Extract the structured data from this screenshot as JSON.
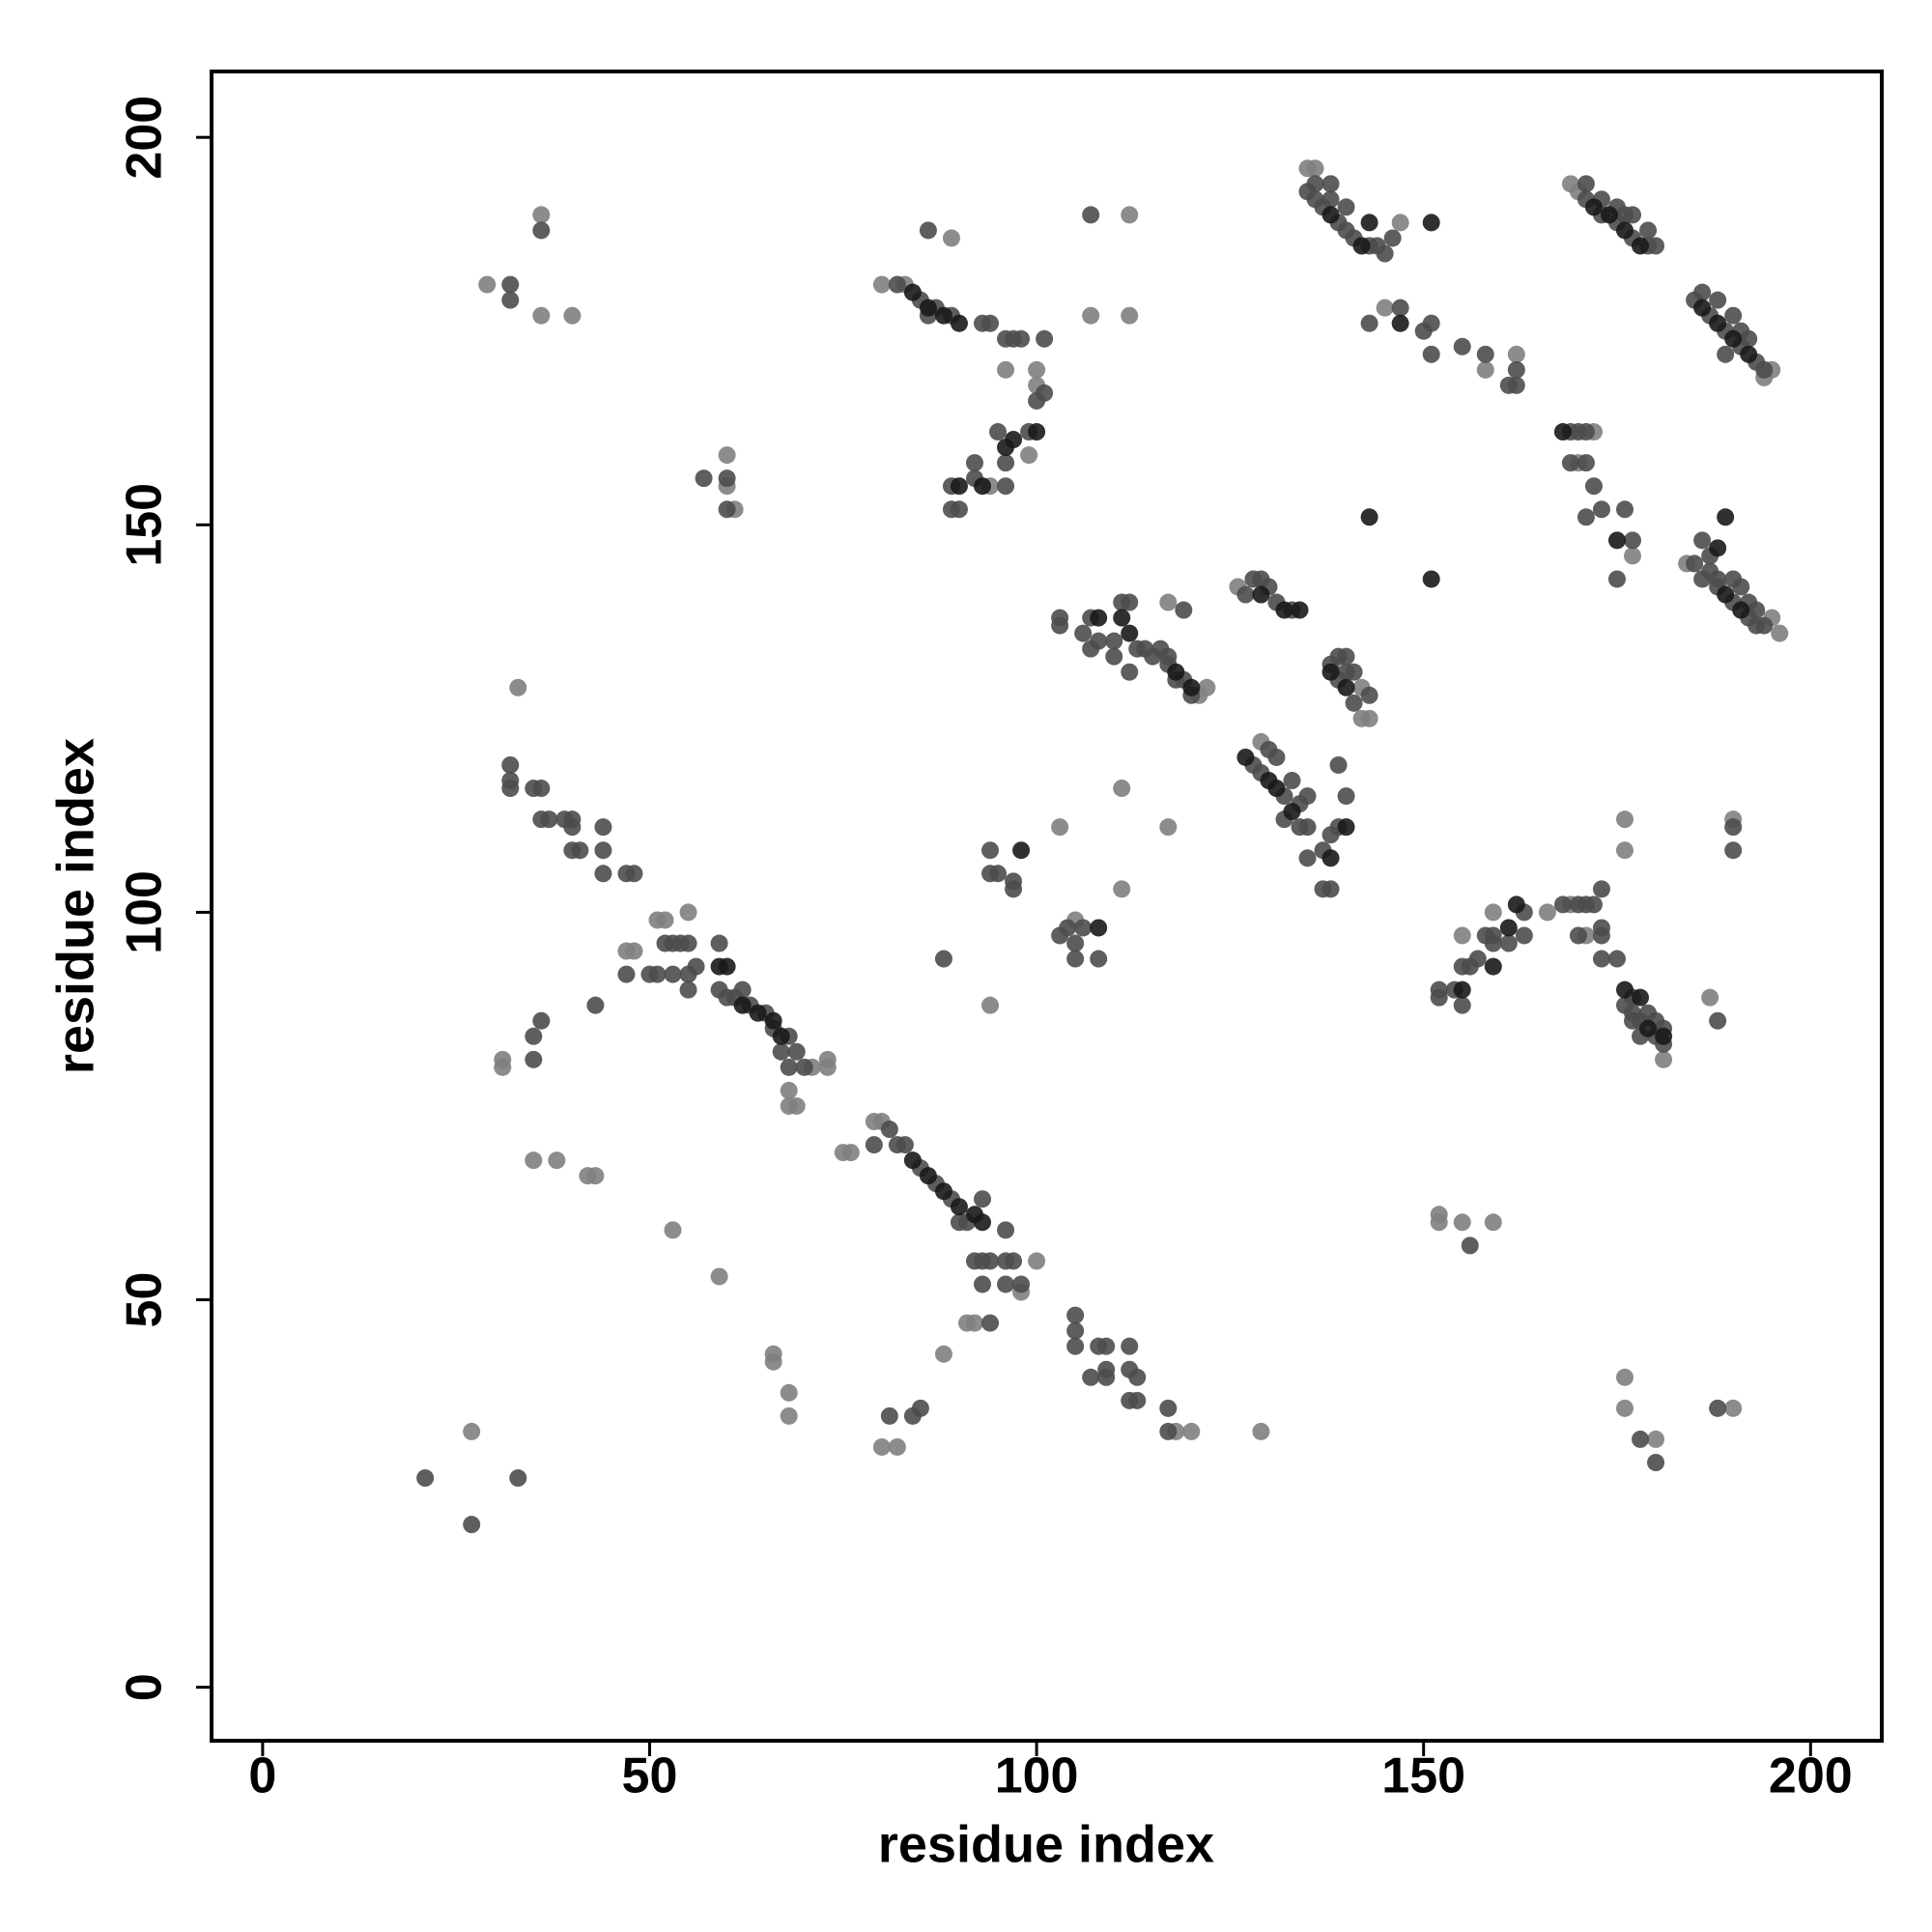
{
  "chart_data": {
    "type": "scatter",
    "xlabel": "residue index",
    "ylabel": "residue index",
    "xlim": [
      -6.6,
      209.2
    ],
    "ylim": [
      -6.9,
      208.5
    ],
    "xticks": [
      0,
      50,
      100,
      150,
      200
    ],
    "yticks": [
      0,
      50,
      100,
      150,
      200
    ],
    "series": [
      {
        "color": "#7f7f7f",
        "x": [
          27,
          31,
          31,
          35,
          38,
          42,
          43,
          33,
          36,
          29,
          36,
          40,
          53,
          59,
          60,
          60,
          61,
          66,
          66,
          68,
          68,
          75,
          76,
          79,
          80,
          80,
          82,
          88,
          89,
          94,
          96,
          100,
          100,
          99,
          112,
          107,
          112,
          103,
          111,
          117,
          111,
          105,
          129,
          118,
          120,
          145,
          147,
          158,
          162,
          152,
          152,
          155,
          159,
          166,
          169,
          171,
          170,
          172,
          177,
          176,
          176,
          190,
          187,
          176,
          176,
          180,
          190,
          196,
          195,
          194,
          195,
          169,
          170,
          135,
          136,
          184,
          122,
          121,
          68,
          68,
          69,
          71,
          73,
          73,
          47,
          48,
          51,
          52,
          55,
          91,
          92,
          98,
          100,
          94,
          83,
          80,
          142,
          143,
          142,
          155,
          159,
          181,
          126,
          129,
          117
        ],
        "y": [
          33,
          81,
          80,
          68,
          68,
          66,
          66,
          129,
          190,
          181,
          177,
          177,
          59,
          53,
          159,
          155,
          152,
          43,
          42,
          38,
          35,
          69,
          69,
          73,
          73,
          31,
          31,
          43,
          187,
          155,
          170,
          170,
          168,
          159,
          190,
          177,
          177,
          111,
          116,
          111,
          103,
          99,
          33,
          33,
          33,
          178,
          189,
          170,
          172,
          61,
          60,
          60,
          60,
          100,
          101,
          97,
          158,
          162,
          146,
          112,
          108,
          112,
          89,
          40,
          36,
          32,
          36,
          136,
          138,
          169,
          170,
          194,
          193,
          196,
          196,
          145,
          129,
          128,
          77,
          75,
          75,
          80,
          80,
          81,
          95,
          95,
          99,
          99,
          100,
          47,
          47,
          51,
          55,
          88,
          181,
          181,
          125,
          125,
          129,
          97,
          100,
          81,
          142,
          122,
          140
        ]
      },
      {
        "color": "#4d4d4d",
        "x": [
          21,
          27,
          33,
          35,
          35,
          36,
          43,
          32,
          32,
          32,
          35,
          36,
          36,
          37,
          39,
          40,
          40,
          40,
          41,
          44,
          44,
          44,
          47,
          48,
          36,
          32,
          32,
          47,
          50,
          51,
          52,
          53,
          54,
          53,
          55,
          55,
          55,
          56,
          59,
          59,
          60,
          61,
          62,
          63,
          65,
          66,
          67,
          68,
          68,
          69,
          70,
          57,
          60,
          60,
          79,
          81,
          82,
          83,
          85,
          87,
          89,
          90,
          91,
          93,
          92,
          93,
          94,
          93,
          94,
          96,
          96,
          96,
          97,
          98,
          81,
          84,
          85,
          88,
          82,
          85,
          86,
          87,
          89,
          86,
          93,
          94,
          96,
          97,
          98,
          101,
          101,
          100,
          99,
          96,
          96,
          95,
          92,
          92,
          89,
          89,
          90,
          107,
          94,
          94,
          95,
          97,
          97,
          103,
          104,
          106,
          105,
          105,
          108,
          105,
          105,
          105,
          108,
          109,
          107,
          109,
          109,
          112,
          112,
          113,
          112,
          113,
          117,
          117,
          103,
          103,
          107,
          106,
          107,
          108,
          110,
          110,
          111,
          112,
          112,
          113,
          114,
          115,
          116,
          117,
          117,
          118,
          119,
          120,
          119,
          127,
          128,
          129,
          130,
          131,
          133,
          128,
          129,
          130,
          131,
          132,
          132,
          133,
          134,
          134,
          135,
          135,
          135,
          137,
          137,
          138,
          138,
          139,
          140,
          139,
          138,
          139,
          139,
          140,
          141,
          141,
          143,
          140,
          135,
          136,
          137,
          139,
          140,
          141,
          143,
          144,
          145,
          146,
          136,
          138,
          138,
          140,
          143,
          147,
          150,
          151,
          151,
          155,
          158,
          161,
          162,
          162,
          152,
          152,
          154,
          155,
          155,
          156,
          157,
          158,
          159,
          159,
          161,
          163,
          163,
          168,
          170,
          171,
          172,
          170,
          173,
          173,
          173,
          173,
          175,
          156,
          169,
          170,
          171,
          169,
          171,
          171,
          172,
          173,
          175,
          176,
          177,
          171,
          171,
          173,
          175,
          176,
          177,
          179,
          179,
          180,
          173,
          175,
          177,
          185,
          186,
          187,
          188,
          189,
          189,
          190,
          191,
          191,
          192,
          193,
          194,
          185,
          186,
          186,
          187,
          187,
          188,
          188,
          190,
          190,
          191,
          192,
          192,
          193,
          193,
          194,
          190,
          190,
          188,
          176,
          177,
          177,
          178,
          179,
          180,
          180,
          181,
          181,
          177,
          178,
          178,
          180,
          188
        ],
        "y": [
          27,
          21,
          27,
          84,
          81,
          86,
          88,
          119,
          117,
          116,
          116,
          116,
          112,
          112,
          112,
          112,
          111,
          108,
          108,
          111,
          108,
          105,
          105,
          105,
          188,
          181,
          179,
          92,
          92,
          92,
          96,
          96,
          96,
          92,
          92,
          96,
          90,
          93,
          96,
          90,
          89,
          89,
          90,
          88,
          87,
          85,
          82,
          84,
          80,
          82,
          80,
          156,
          156,
          152,
          70,
          72,
          70,
          70,
          67,
          65,
          63,
          60,
          60,
          63,
          55,
          55,
          55,
          52,
          47,
          59,
          55,
          52,
          55,
          52,
          35,
          35,
          36,
          94,
          181,
          179,
          177,
          178,
          177,
          188,
          176,
          176,
          174,
          174,
          174,
          174,
          167,
          166,
          162,
          158,
          155,
          162,
          158,
          156,
          155,
          152,
          152,
          190,
          108,
          105,
          105,
          104,
          103,
          97,
          98,
          98,
          96,
          94,
          94,
          48,
          46,
          44,
          44,
          44,
          40,
          40,
          41,
          44,
          41,
          40,
          37,
          37,
          36,
          33,
          138,
          137,
          138,
          136,
          134,
          135,
          133,
          135,
          140,
          140,
          131,
          134,
          134,
          133,
          134,
          133,
          132,
          130,
          130,
          128,
          139,
          141,
          143,
          143,
          142,
          140,
          139,
          119,
          118,
          121,
          120,
          115,
          112,
          117,
          114,
          111,
          115,
          111,
          107,
          108,
          103,
          103,
          110,
          111,
          115,
          119,
          132,
          133,
          130,
          131,
          131,
          127,
          128,
          133,
          193,
          192,
          191,
          189,
          188,
          187,
          186,
          186,
          185,
          187,
          194,
          192,
          194,
          191,
          176,
          178,
          175,
          176,
          172,
          173,
          172,
          168,
          168,
          170,
          90,
          89,
          90,
          88,
          93,
          93,
          94,
          97,
          97,
          96,
          96,
          100,
          97,
          101,
          101,
          101,
          101,
          97,
          103,
          98,
          97,
          94,
          94,
          57,
          162,
          162,
          162,
          158,
          158,
          151,
          155,
          152,
          143,
          152,
          148,
          194,
          192,
          192,
          189,
          190,
          187,
          186,
          188,
          186,
          190,
          191,
          190,
          179,
          180,
          177,
          179,
          175,
          172,
          177,
          175,
          173,
          174,
          171,
          170,
          145,
          143,
          148,
          146,
          144,
          143,
          142,
          143,
          140,
          142,
          140,
          138,
          139,
          137,
          137,
          111,
          108,
          86,
          88,
          89,
          87,
          86,
          87,
          86,
          84,
          85,
          83,
          86,
          84,
          32,
          29,
          36
        ]
      },
      {
        "color": "#1a1a1a",
        "x": [
          59,
          60,
          62,
          64,
          66,
          67,
          84,
          86,
          88,
          90,
          92,
          93,
          84,
          86,
          88,
          90,
          90,
          93,
          96,
          97,
          100,
          98,
          108,
          112,
          111,
          108,
          130,
          131,
          133,
          138,
          138,
          140,
          140,
          143,
          138,
          142,
          151,
          147,
          143,
          151,
          159,
          162,
          155,
          161,
          172,
          174,
          176,
          178,
          186,
          188,
          190,
          192,
          189,
          191,
          188,
          189,
          176,
          178,
          179,
          181,
          168,
          175,
          129,
          132,
          127,
          134,
          120,
          118
        ],
        "y": [
          93,
          93,
          88,
          87,
          86,
          84,
          68,
          66,
          64,
          62,
          61,
          60,
          180,
          178,
          177,
          176,
          155,
          155,
          160,
          161,
          162,
          108,
          98,
          136,
          138,
          138,
          117,
          116,
          113,
          107,
          131,
          129,
          111,
          189,
          190,
          186,
          189,
          176,
          151,
          143,
          93,
          101,
          90,
          98,
          191,
          190,
          188,
          186,
          178,
          176,
          174,
          172,
          141,
          139,
          147,
          151,
          90,
          89,
          85,
          84,
          162,
          148,
          141,
          139,
          120,
          139,
          129,
          131
        ]
      }
    ]
  }
}
